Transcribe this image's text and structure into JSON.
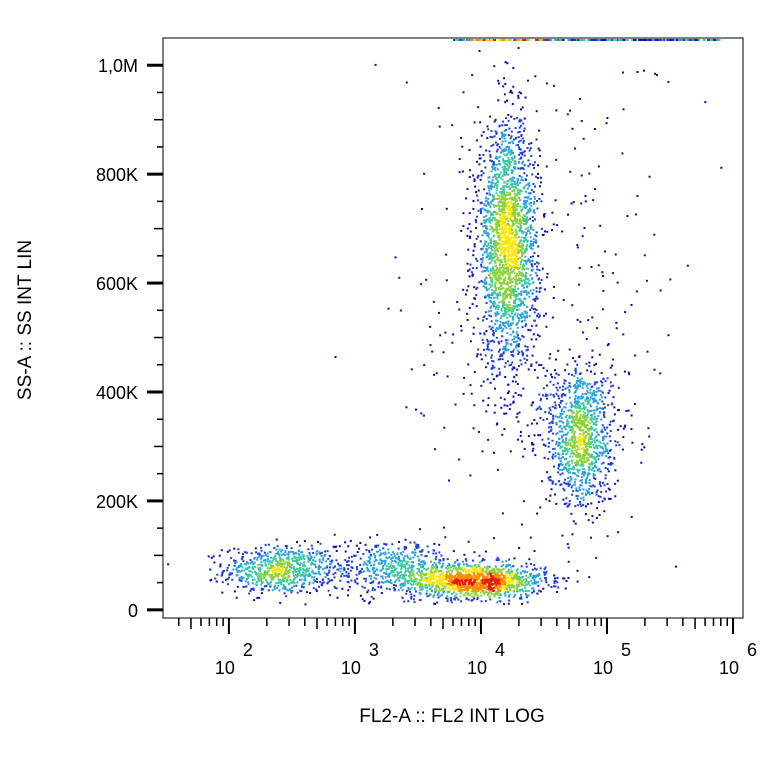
{
  "chart_data": {
    "type": "scatter",
    "style": "density-colored flow cytometry dot plot",
    "xlabel": "FL2-A :: FL2 INT LOG",
    "ylabel": "SS-A :: SS INT LIN",
    "x_scale": "log",
    "xlim": [
      30,
      1200000
    ],
    "ylim": [
      -15000,
      1050000
    ],
    "x_major_ticks": [
      {
        "value": 100,
        "base": "10",
        "exp": "2"
      },
      {
        "value": 1000,
        "base": "10",
        "exp": "3"
      },
      {
        "value": 10000,
        "base": "10",
        "exp": "4"
      },
      {
        "value": 100000,
        "base": "10",
        "exp": "5"
      },
      {
        "value": 1000000,
        "base": "10",
        "exp": "6"
      }
    ],
    "y_major_ticks": [
      {
        "value": 0,
        "label": "0"
      },
      {
        "value": 200000,
        "label": "200K"
      },
      {
        "value": 400000,
        "label": "400K"
      },
      {
        "value": 600000,
        "label": "600K"
      },
      {
        "value": 800000,
        "label": "800K"
      },
      {
        "value": 1000000,
        "label": "1,0M"
      }
    ],
    "populations": [
      {
        "x_center": 250,
        "x_log_sd": 0.22,
        "y_center": 75000,
        "y_sd": 22000,
        "count": 700
      },
      {
        "x_center": 9000,
        "x_log_sd": 0.28,
        "y_center": 55000,
        "y_sd": 16000,
        "count": 1300
      },
      {
        "x_center": 2000,
        "x_log_sd": 0.3,
        "y_center": 80000,
        "y_sd": 25000,
        "count": 500
      },
      {
        "x_center": 16000,
        "x_log_sd": 0.12,
        "y_center": 670000,
        "y_sd": 110000,
        "count": 2200
      },
      {
        "x_center": 60000,
        "x_log_sd": 0.13,
        "y_center": 320000,
        "y_sd": 65000,
        "count": 1100
      },
      {
        "x_center": 30000,
        "x_log_sd": 0.55,
        "y_center": 550000,
        "y_sd": 250000,
        "count": 350
      }
    ],
    "saturation_band_y": 1050000,
    "density_colors": [
      "#0a0ab4",
      "#1e3cdc",
      "#28a0dc",
      "#3cc8a0",
      "#8cd23c",
      "#ffe600",
      "#ff8c00",
      "#e61e00"
    ]
  }
}
